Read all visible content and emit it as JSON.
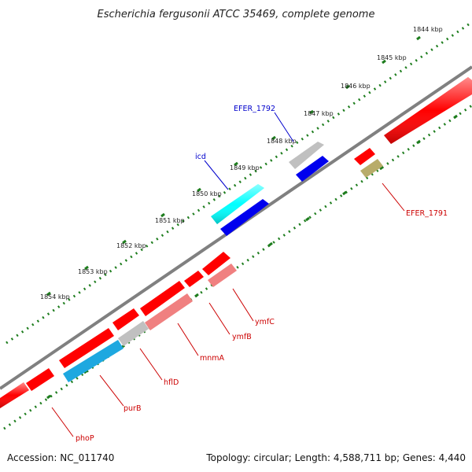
{
  "title": "Escherichia fergusonii ATCC 35469, complete genome",
  "footer": {
    "accession": "Accession: NC_011740",
    "topology": "Topology: circular; Length: 4,588,711 bp; Genes: 4,440"
  },
  "ticks": [
    "1844 kbp",
    "1845 kbp",
    "1846 kbp",
    "1847 kbp",
    "1848 kbp",
    "1849 kbp",
    "1850 kbp",
    "1851 kbp",
    "1852 kbp",
    "1853 kbp",
    "1854 kbp"
  ],
  "gene_labels": {
    "efer_1792": "EFER_1792",
    "icd": "icd",
    "efer_1791": "EFER_1791",
    "ymfc": "ymfC",
    "ymfb": "ymfB",
    "mnma": "mnmA",
    "hfld": "hflD",
    "purb": "purB",
    "phop": "phoP"
  },
  "colors": {
    "backbone": "#808080",
    "ruler": "#1e7d1e",
    "gene_red": "#ff0000",
    "gene_pink": "#f08080",
    "gene_cyan": "#00ffff",
    "gene_blue": "#0000ee",
    "gene_skyblue": "#1ea8e0",
    "gene_gray": "#c0c0c0",
    "gene_olive": "#b8ac6a",
    "label_red": "#cc0000",
    "label_blue": "#0000cc"
  }
}
